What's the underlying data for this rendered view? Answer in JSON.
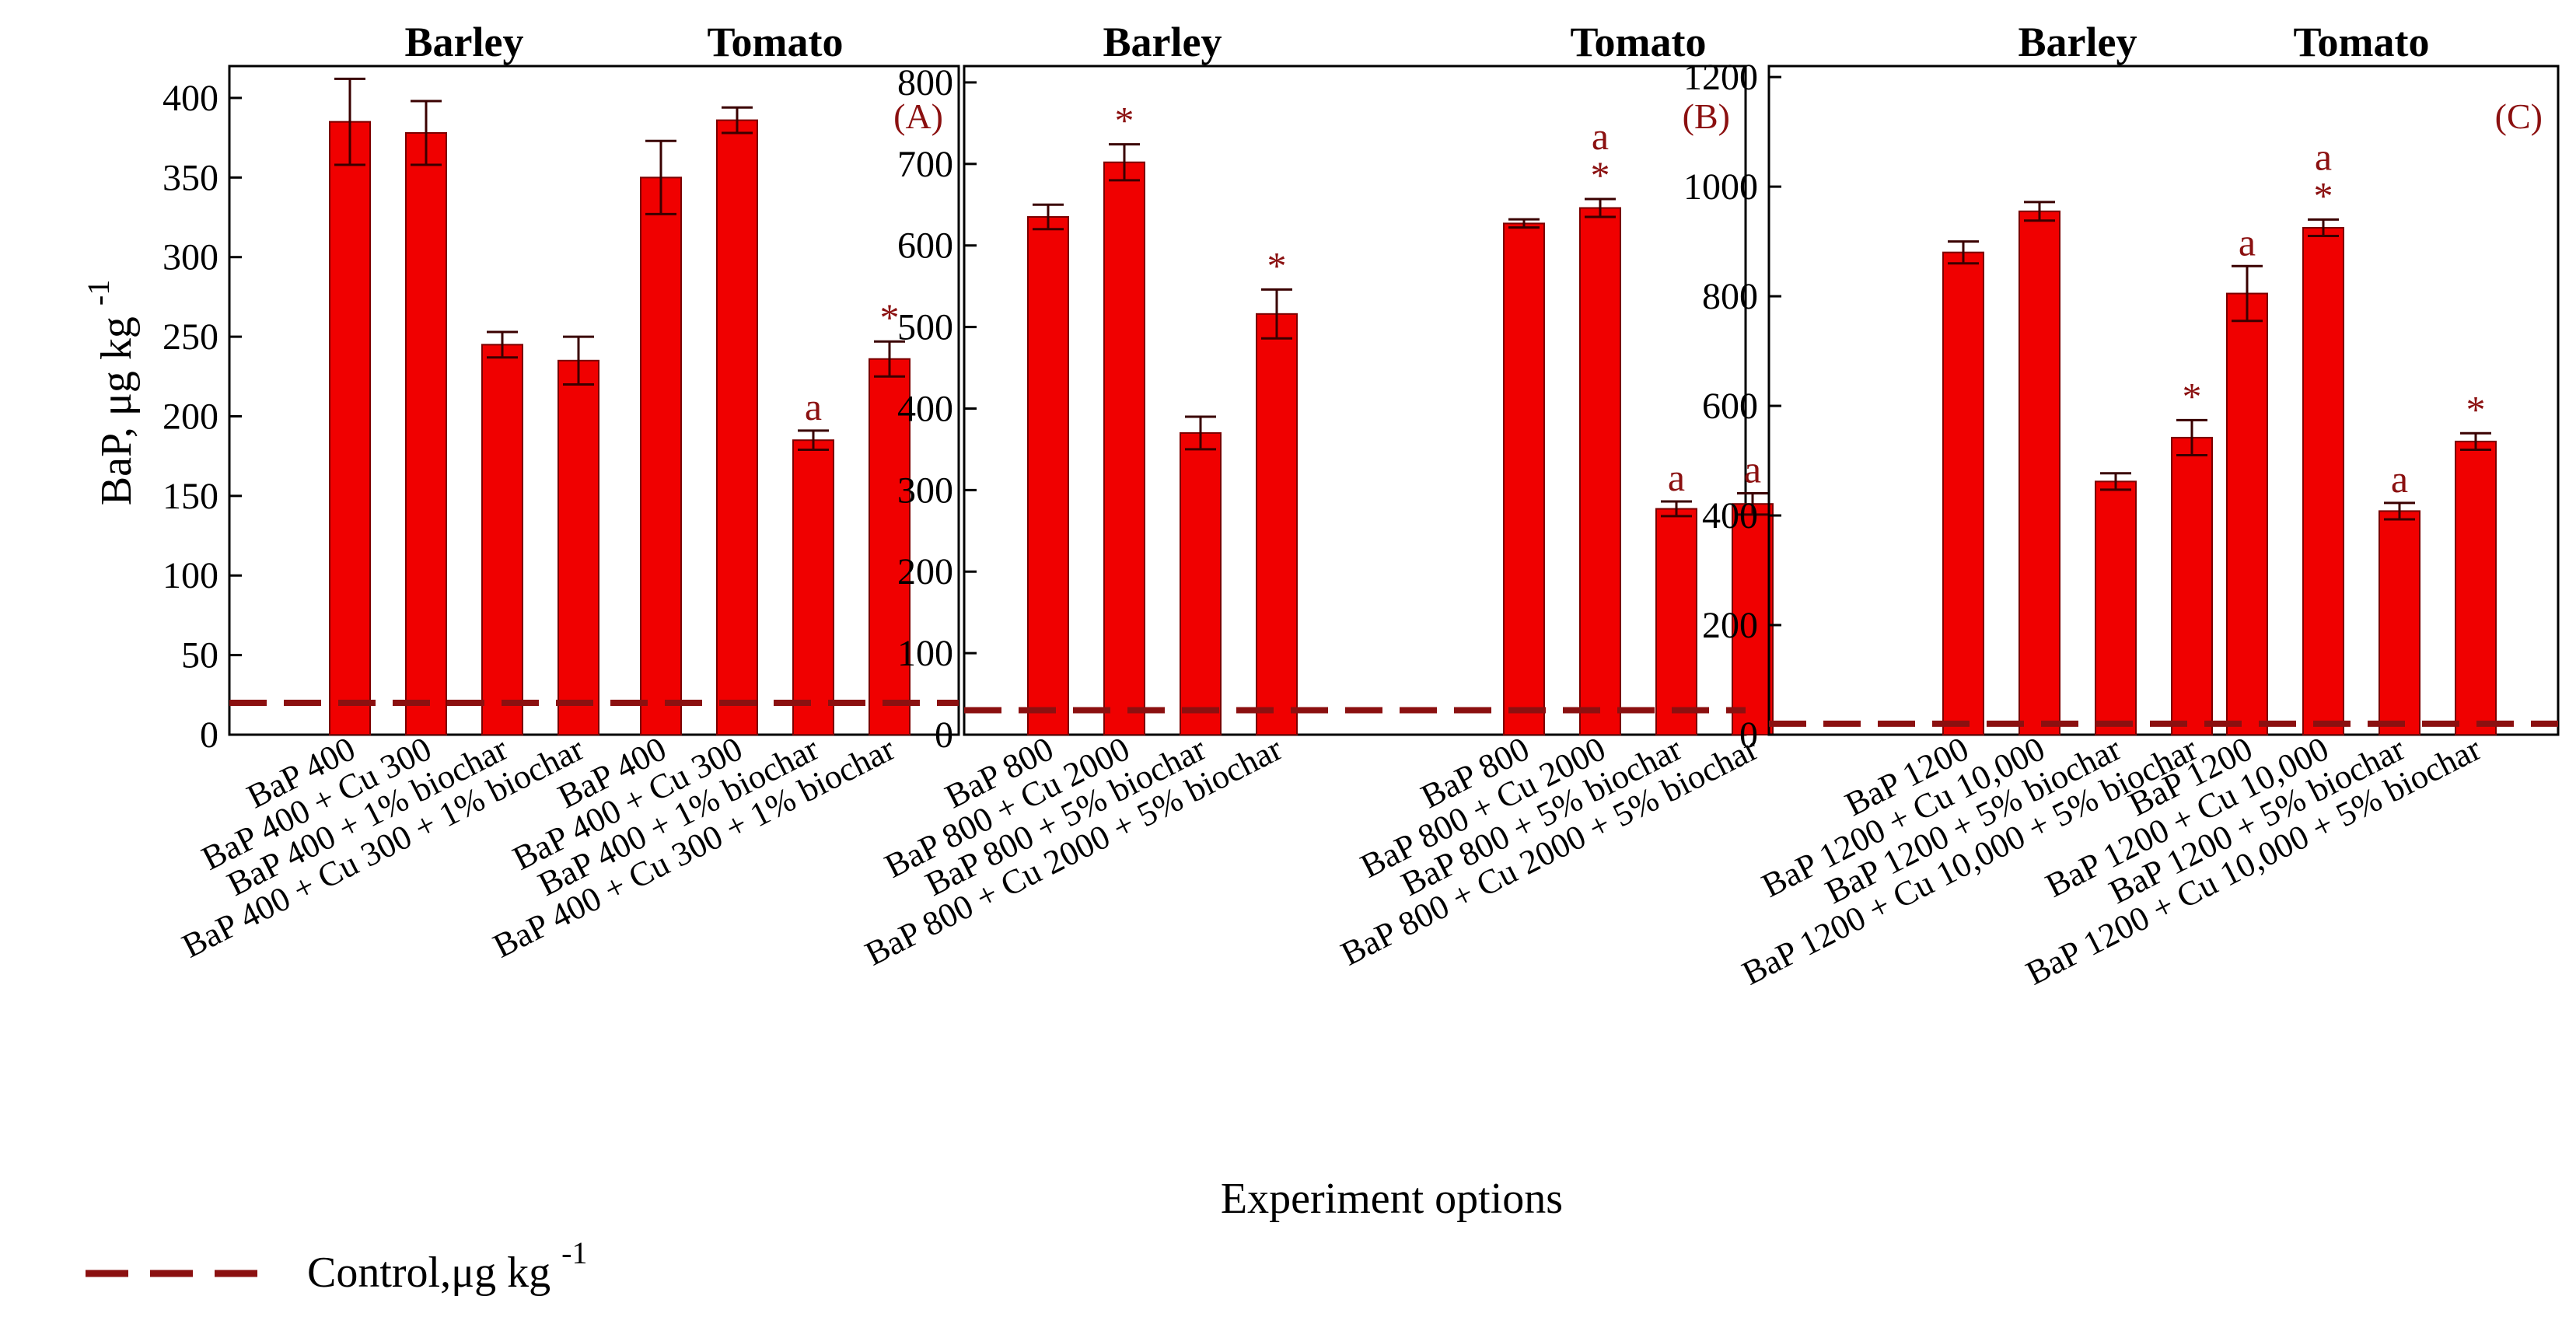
{
  "chart_data": {
    "type": "bar",
    "ylabel": "BaP, μg kg",
    "ylabel_sup": "-1",
    "xlabel": "Experiment options",
    "legend": {
      "label": "Control,μg kg",
      "label_sup": "-1",
      "style": "dashed",
      "placement": "bottom-left"
    },
    "colors": {
      "bar": "#f00000",
      "bar_edge": "#7a0000",
      "control_line": "#8b1010",
      "annotation": "#8b1010"
    },
    "panels": [
      {
        "tag": "(A)",
        "ylim": [
          0,
          420
        ],
        "yticks": [
          0,
          50,
          100,
          150,
          200,
          250,
          300,
          350,
          400
        ],
        "control": 20,
        "groups": [
          {
            "name": "Barley",
            "categories": [
              "BaP 400",
              "BaP 400 + Cu 300",
              "BaP 400 + 1% biochar",
              "BaP 400 + Cu 300 + 1% biochar"
            ],
            "values": [
              385,
              378,
              245,
              235
            ],
            "errors": [
              27,
              20,
              8,
              15
            ],
            "annotations": [
              "",
              "",
              "",
              ""
            ]
          },
          {
            "name": "Tomato",
            "categories": [
              "BaP 400",
              "BaP 400 + Cu 300",
              "BaP 400 + 1% biochar",
              "BaP 400 + Cu 300 + 1% biochar"
            ],
            "values": [
              350,
              386,
              185,
              236
            ],
            "errors": [
              23,
              8,
              6,
              11
            ],
            "annotations": [
              "",
              "",
              "a",
              "*"
            ]
          }
        ]
      },
      {
        "tag": "(B)",
        "ylim": [
          0,
          820
        ],
        "yticks": [
          0,
          100,
          200,
          300,
          400,
          500,
          600,
          700,
          800
        ],
        "control": 30,
        "groups": [
          {
            "name": "Barley",
            "categories": [
              "BaP 800",
              "BaP 800 + Cu 2000",
              "BaP 800 + 5% biochar",
              "BaP 800 + Cu 2000 + 5% biochar"
            ],
            "values": [
              635,
              702,
              370,
              516
            ],
            "errors": [
              15,
              22,
              20,
              30
            ],
            "annotations": [
              "",
              "*",
              "",
              "*"
            ]
          },
          {
            "name": "Tomato",
            "categories": [
              "BaP 800",
              "BaP 800 + Cu 2000",
              "BaP 800 + 5% biochar",
              "BaP 800 + Cu 2000 + 5% biochar"
            ],
            "values": [
              627,
              646,
              277,
              283
            ],
            "errors": [
              5,
              11,
              9,
              13
            ],
            "annotations": [
              "",
              "a\n*",
              "a",
              "a"
            ]
          }
        ]
      },
      {
        "tag": "(C)",
        "ylim": [
          0,
          1220
        ],
        "yticks": [
          0,
          200,
          400,
          600,
          800,
          1000,
          1200
        ],
        "control": 20,
        "groups": [
          {
            "name": "Barley",
            "categories": [
              "BaP 1200",
              "BaP 1200 + Cu 10,000",
              "BaP 1200 + 5% biochar",
              "BaP 1200 + Cu 10,000 + 5% biochar"
            ],
            "values": [
              880,
              955,
              462,
              542
            ],
            "errors": [
              20,
              17,
              15,
              32
            ],
            "annotations": [
              "",
              "",
              "",
              "*"
            ]
          },
          {
            "name": "Tomato",
            "categories": [
              "BaP 1200",
              "BaP 1200 + Cu 10,000",
              "BaP 1200 + 5% biochar",
              "BaP 1200 + Cu 10,000 + 5% biochar"
            ],
            "values": [
              805,
              925,
              408,
              535
            ],
            "errors": [
              50,
              15,
              15,
              15
            ],
            "annotations": [
              "a",
              "a\n*",
              "a",
              "*"
            ]
          }
        ]
      }
    ]
  }
}
